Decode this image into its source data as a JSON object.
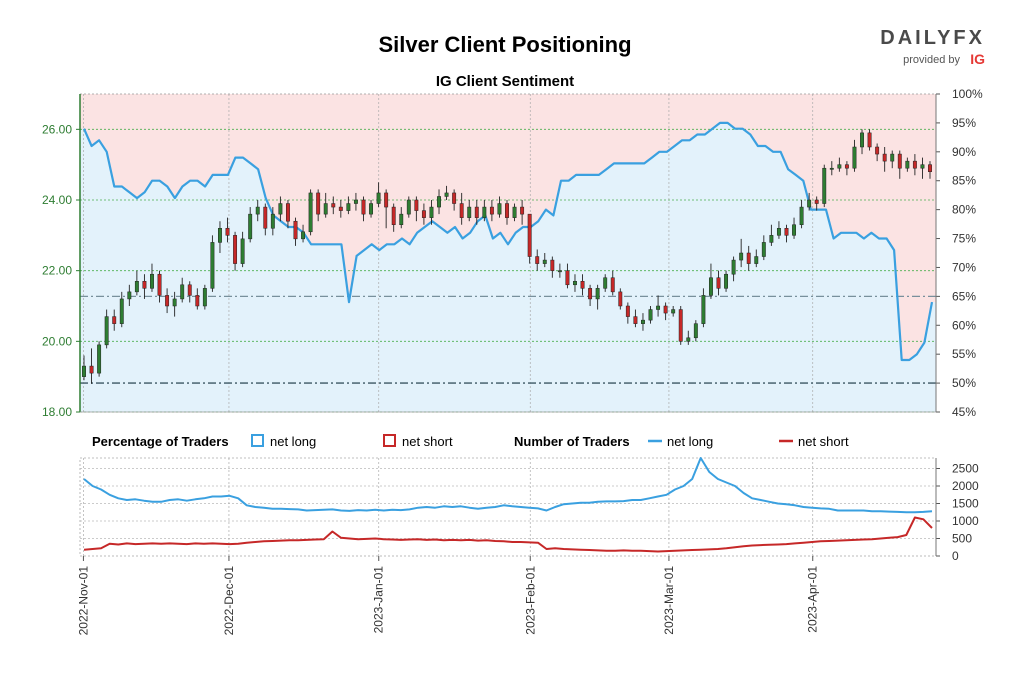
{
  "header": {
    "title": "Silver Client Positioning",
    "subtitle": "IG Client Sentiment"
  },
  "logo": {
    "main": "DAILYFX",
    "sub": "provided by",
    "brand": "IG"
  },
  "legend": {
    "pct_heading": "Percentage of Traders",
    "num_heading": "Number of Traders",
    "net_long": "net long",
    "net_short": "net short"
  },
  "colors": {
    "net_long": "#3aa0e0",
    "net_short": "#c62828",
    "long_fill": "#e3f2fb",
    "short_fill": "#fbe3e3",
    "candle_up": "#2e7d32",
    "candle_down": "#c62828",
    "axis_green": "#2e7d32"
  },
  "chart_data": [
    {
      "type": "candlestick+area",
      "title": "IG Client Sentiment",
      "price_axis": {
        "ticks": [
          "18.00",
          "20.00",
          "22.00",
          "24.00",
          "26.00"
        ],
        "range": [
          18,
          27
        ]
      },
      "pct_axis": {
        "ticks": [
          "45%",
          "50%",
          "55%",
          "60%",
          "65%",
          "70%",
          "75%",
          "80%",
          "85%",
          "90%",
          "95%",
          "100%"
        ],
        "range": [
          45,
          100
        ]
      },
      "x_ticks": [
        "2022-Nov-01",
        "2022-Dec-01",
        "2023-Jan-01",
        "2023-Feb-01",
        "2023-Mar-01",
        "2023-Apr-01"
      ],
      "net_long_pct": [
        94,
        91,
        92,
        90,
        84,
        84,
        83,
        82,
        83,
        85,
        85,
        84,
        82,
        84,
        85,
        85,
        84,
        86,
        86,
        86,
        89,
        89,
        88,
        87,
        82,
        79,
        78,
        77,
        77,
        76,
        74,
        74,
        74,
        74,
        74,
        64,
        72,
        73,
        74,
        73,
        74,
        74,
        75,
        74,
        76,
        77,
        78,
        77,
        76,
        77,
        75,
        76,
        78,
        79,
        75,
        76,
        74,
        76,
        77,
        77,
        78,
        80,
        79,
        85,
        85,
        86,
        86,
        86,
        86,
        87,
        88,
        88,
        88,
        88,
        88,
        89,
        90,
        90,
        91,
        92,
        92,
        93,
        93,
        94,
        95,
        95,
        94,
        94,
        93,
        91,
        91,
        90,
        90,
        87,
        86,
        85,
        80,
        80,
        80,
        75,
        76,
        76,
        76,
        75,
        76,
        75,
        75,
        73,
        54,
        54,
        55,
        57,
        64
      ],
      "candles": [
        {
          "o": 19.0,
          "c": 19.3,
          "h": 19.6,
          "l": 18.9
        },
        {
          "o": 19.3,
          "c": 19.1,
          "h": 19.8,
          "l": 18.8
        },
        {
          "o": 19.1,
          "c": 19.9,
          "h": 20.0,
          "l": 19.0
        },
        {
          "o": 19.9,
          "c": 20.7,
          "h": 20.9,
          "l": 19.8
        },
        {
          "o": 20.7,
          "c": 20.5,
          "h": 20.9,
          "l": 20.3
        },
        {
          "o": 20.5,
          "c": 21.2,
          "h": 21.4,
          "l": 20.4
        },
        {
          "o": 21.2,
          "c": 21.4,
          "h": 21.6,
          "l": 21.0
        },
        {
          "o": 21.4,
          "c": 21.7,
          "h": 22.0,
          "l": 21.3
        },
        {
          "o": 21.7,
          "c": 21.5,
          "h": 21.9,
          "l": 21.2
        },
        {
          "o": 21.5,
          "c": 21.9,
          "h": 22.2,
          "l": 21.4
        },
        {
          "o": 21.9,
          "c": 21.3,
          "h": 22.0,
          "l": 21.1
        },
        {
          "o": 21.3,
          "c": 21.0,
          "h": 21.5,
          "l": 20.8
        },
        {
          "o": 21.0,
          "c": 21.2,
          "h": 21.4,
          "l": 20.7
        },
        {
          "o": 21.2,
          "c": 21.6,
          "h": 21.8,
          "l": 21.1
        },
        {
          "o": 21.6,
          "c": 21.3,
          "h": 21.7,
          "l": 21.1
        },
        {
          "o": 21.3,
          "c": 21.0,
          "h": 21.5,
          "l": 20.9
        },
        {
          "o": 21.0,
          "c": 21.5,
          "h": 21.6,
          "l": 20.9
        },
        {
          "o": 21.5,
          "c": 22.8,
          "h": 23.0,
          "l": 21.4
        },
        {
          "o": 22.8,
          "c": 23.2,
          "h": 23.4,
          "l": 22.5
        },
        {
          "o": 23.2,
          "c": 23.0,
          "h": 23.5,
          "l": 22.8
        },
        {
          "o": 23.0,
          "c": 22.2,
          "h": 23.1,
          "l": 22.0
        },
        {
          "o": 22.2,
          "c": 22.9,
          "h": 23.1,
          "l": 22.1
        },
        {
          "o": 22.9,
          "c": 23.6,
          "h": 23.8,
          "l": 22.8
        },
        {
          "o": 23.6,
          "c": 23.8,
          "h": 24.0,
          "l": 23.4
        },
        {
          "o": 23.8,
          "c": 23.2,
          "h": 23.9,
          "l": 23.0
        },
        {
          "o": 23.2,
          "c": 23.6,
          "h": 23.8,
          "l": 23.0
        },
        {
          "o": 23.6,
          "c": 23.9,
          "h": 24.1,
          "l": 23.4
        },
        {
          "o": 23.9,
          "c": 23.4,
          "h": 24.0,
          "l": 23.2
        },
        {
          "o": 23.4,
          "c": 22.9,
          "h": 23.5,
          "l": 22.7
        },
        {
          "o": 22.9,
          "c": 23.1,
          "h": 23.3,
          "l": 22.8
        },
        {
          "o": 23.1,
          "c": 24.2,
          "h": 24.3,
          "l": 23.0
        },
        {
          "o": 24.2,
          "c": 23.6,
          "h": 24.3,
          "l": 23.4
        },
        {
          "o": 23.6,
          "c": 23.9,
          "h": 24.2,
          "l": 23.5
        },
        {
          "o": 23.9,
          "c": 23.8,
          "h": 24.1,
          "l": 23.6
        },
        {
          "o": 23.8,
          "c": 23.7,
          "h": 24.0,
          "l": 23.5
        },
        {
          "o": 23.7,
          "c": 23.9,
          "h": 24.1,
          "l": 23.6
        },
        {
          "o": 23.9,
          "c": 24.0,
          "h": 24.2,
          "l": 23.7
        },
        {
          "o": 24.0,
          "c": 23.6,
          "h": 24.1,
          "l": 23.4
        },
        {
          "o": 23.6,
          "c": 23.9,
          "h": 24.0,
          "l": 23.5
        },
        {
          "o": 23.9,
          "c": 24.2,
          "h": 24.5,
          "l": 23.8
        },
        {
          "o": 24.2,
          "c": 23.8,
          "h": 24.3,
          "l": 23.2
        },
        {
          "o": 23.8,
          "c": 23.3,
          "h": 23.9,
          "l": 23.1
        },
        {
          "o": 23.3,
          "c": 23.6,
          "h": 23.8,
          "l": 23.2
        },
        {
          "o": 23.6,
          "c": 24.0,
          "h": 24.1,
          "l": 23.5
        },
        {
          "o": 24.0,
          "c": 23.7,
          "h": 24.1,
          "l": 23.4
        },
        {
          "o": 23.7,
          "c": 23.5,
          "h": 23.9,
          "l": 23.3
        },
        {
          "o": 23.5,
          "c": 23.8,
          "h": 24.0,
          "l": 23.3
        },
        {
          "o": 23.8,
          "c": 24.1,
          "h": 24.3,
          "l": 23.6
        },
        {
          "o": 24.1,
          "c": 24.2,
          "h": 24.4,
          "l": 24.0
        },
        {
          "o": 24.2,
          "c": 23.9,
          "h": 24.3,
          "l": 23.7
        },
        {
          "o": 23.9,
          "c": 23.5,
          "h": 24.2,
          "l": 23.3
        },
        {
          "o": 23.5,
          "c": 23.8,
          "h": 24.0,
          "l": 23.4
        },
        {
          "o": 23.8,
          "c": 23.5,
          "h": 24.0,
          "l": 23.3
        },
        {
          "o": 23.5,
          "c": 23.8,
          "h": 24.0,
          "l": 23.4
        },
        {
          "o": 23.8,
          "c": 23.6,
          "h": 24.0,
          "l": 23.4
        },
        {
          "o": 23.6,
          "c": 23.9,
          "h": 24.1,
          "l": 23.5
        },
        {
          "o": 23.9,
          "c": 23.5,
          "h": 24.0,
          "l": 23.3
        },
        {
          "o": 23.5,
          "c": 23.8,
          "h": 23.9,
          "l": 23.4
        },
        {
          "o": 23.8,
          "c": 23.6,
          "h": 24.0,
          "l": 23.3
        },
        {
          "o": 23.6,
          "c": 22.4,
          "h": 23.6,
          "l": 22.2
        },
        {
          "o": 22.4,
          "c": 22.2,
          "h": 22.6,
          "l": 22.0
        },
        {
          "o": 22.2,
          "c": 22.3,
          "h": 22.5,
          "l": 22.1
        },
        {
          "o": 22.3,
          "c": 22.0,
          "h": 22.4,
          "l": 21.8
        },
        {
          "o": 22.0,
          "c": 22.0,
          "h": 22.2,
          "l": 21.8
        },
        {
          "o": 22.0,
          "c": 21.6,
          "h": 22.2,
          "l": 21.5
        },
        {
          "o": 21.6,
          "c": 21.7,
          "h": 21.9,
          "l": 21.4
        },
        {
          "o": 21.7,
          "c": 21.5,
          "h": 21.9,
          "l": 21.3
        },
        {
          "o": 21.5,
          "c": 21.2,
          "h": 21.6,
          "l": 21.0
        },
        {
          "o": 21.2,
          "c": 21.5,
          "h": 21.6,
          "l": 20.9
        },
        {
          "o": 21.5,
          "c": 21.8,
          "h": 21.9,
          "l": 21.4
        },
        {
          "o": 21.8,
          "c": 21.4,
          "h": 22.0,
          "l": 21.3
        },
        {
          "o": 21.4,
          "c": 21.0,
          "h": 21.5,
          "l": 20.9
        },
        {
          "o": 21.0,
          "c": 20.7,
          "h": 21.1,
          "l": 20.5
        },
        {
          "o": 20.7,
          "c": 20.5,
          "h": 20.9,
          "l": 20.4
        },
        {
          "o": 20.5,
          "c": 20.6,
          "h": 20.8,
          "l": 20.3
        },
        {
          "o": 20.6,
          "c": 20.9,
          "h": 21.0,
          "l": 20.5
        },
        {
          "o": 20.9,
          "c": 21.0,
          "h": 21.3,
          "l": 20.7
        },
        {
          "o": 21.0,
          "c": 20.8,
          "h": 21.1,
          "l": 20.6
        },
        {
          "o": 20.8,
          "c": 20.9,
          "h": 21.0,
          "l": 20.7
        },
        {
          "o": 20.9,
          "c": 20.0,
          "h": 21.0,
          "l": 19.9
        },
        {
          "o": 20.0,
          "c": 20.1,
          "h": 20.3,
          "l": 19.9
        },
        {
          "o": 20.1,
          "c": 20.5,
          "h": 20.6,
          "l": 20.0
        },
        {
          "o": 20.5,
          "c": 21.3,
          "h": 21.5,
          "l": 20.4
        },
        {
          "o": 21.3,
          "c": 21.8,
          "h": 22.2,
          "l": 21.2
        },
        {
          "o": 21.8,
          "c": 21.5,
          "h": 22.0,
          "l": 21.3
        },
        {
          "o": 21.5,
          "c": 21.9,
          "h": 22.0,
          "l": 21.4
        },
        {
          "o": 21.9,
          "c": 22.3,
          "h": 22.4,
          "l": 21.7
        },
        {
          "o": 22.3,
          "c": 22.5,
          "h": 22.9,
          "l": 22.1
        },
        {
          "o": 22.5,
          "c": 22.2,
          "h": 22.7,
          "l": 22.0
        },
        {
          "o": 22.2,
          "c": 22.4,
          "h": 22.6,
          "l": 22.1
        },
        {
          "o": 22.4,
          "c": 22.8,
          "h": 23.0,
          "l": 22.3
        },
        {
          "o": 22.8,
          "c": 23.0,
          "h": 23.3,
          "l": 22.7
        },
        {
          "o": 23.0,
          "c": 23.2,
          "h": 23.4,
          "l": 22.9
        },
        {
          "o": 23.2,
          "c": 23.0,
          "h": 23.3,
          "l": 22.8
        },
        {
          "o": 23.0,
          "c": 23.3,
          "h": 23.5,
          "l": 22.9
        },
        {
          "o": 23.3,
          "c": 23.8,
          "h": 24.0,
          "l": 23.2
        },
        {
          "o": 23.8,
          "c": 24.0,
          "h": 24.2,
          "l": 23.7
        },
        {
          "o": 24.0,
          "c": 23.9,
          "h": 24.1,
          "l": 23.7
        },
        {
          "o": 23.9,
          "c": 24.9,
          "h": 25.0,
          "l": 23.8
        },
        {
          "o": 24.9,
          "c": 24.9,
          "h": 25.1,
          "l": 24.7
        },
        {
          "o": 24.9,
          "c": 25.0,
          "h": 25.2,
          "l": 24.8
        },
        {
          "o": 25.0,
          "c": 24.9,
          "h": 25.1,
          "l": 24.7
        },
        {
          "o": 24.9,
          "c": 25.5,
          "h": 25.7,
          "l": 24.8
        },
        {
          "o": 25.5,
          "c": 25.9,
          "h": 26.0,
          "l": 25.3
        },
        {
          "o": 25.9,
          "c": 25.5,
          "h": 26.0,
          "l": 25.4
        },
        {
          "o": 25.5,
          "c": 25.3,
          "h": 25.6,
          "l": 25.1
        },
        {
          "o": 25.3,
          "c": 25.1,
          "h": 25.5,
          "l": 24.8
        },
        {
          "o": 25.1,
          "c": 25.3,
          "h": 25.4,
          "l": 24.9
        },
        {
          "o": 25.3,
          "c": 24.9,
          "h": 25.4,
          "l": 24.6
        },
        {
          "o": 24.9,
          "c": 25.1,
          "h": 25.2,
          "l": 24.8
        },
        {
          "o": 25.1,
          "c": 24.9,
          "h": 25.3,
          "l": 24.7
        },
        {
          "o": 24.9,
          "c": 25.0,
          "h": 25.2,
          "l": 24.6
        },
        {
          "o": 25.0,
          "c": 24.8,
          "h": 25.1,
          "l": 24.6
        }
      ]
    },
    {
      "type": "line",
      "title": "Number of Traders",
      "y_axis": {
        "ticks": [
          "0",
          "500",
          "1000",
          "1500",
          "2000",
          "2500"
        ],
        "range": [
          0,
          2800
        ]
      },
      "series": [
        {
          "name": "net long",
          "values": [
            2200,
            2000,
            1900,
            1750,
            1650,
            1600,
            1620,
            1580,
            1550,
            1550,
            1600,
            1620,
            1580,
            1620,
            1650,
            1700,
            1700,
            1720,
            1650,
            1450,
            1400,
            1380,
            1350,
            1350,
            1340,
            1330,
            1300,
            1310,
            1320,
            1330,
            1300,
            1290,
            1310,
            1300,
            1320,
            1300,
            1320,
            1310,
            1330,
            1380,
            1400,
            1380,
            1420,
            1400,
            1420,
            1380,
            1350,
            1380,
            1400,
            1450,
            1420,
            1400,
            1380,
            1360,
            1300,
            1400,
            1480,
            1500,
            1520,
            1520,
            1550,
            1560,
            1560,
            1570,
            1600,
            1600,
            1650,
            1700,
            1750,
            1900,
            2000,
            2200,
            2800,
            2400,
            2200,
            2100,
            2000,
            1800,
            1650,
            1600,
            1550,
            1500,
            1480,
            1450,
            1400,
            1380,
            1360,
            1350,
            1300,
            1300,
            1300,
            1300,
            1280,
            1280,
            1270,
            1260,
            1250,
            1250,
            1260,
            1280
          ]
        },
        {
          "name": "net short",
          "values": [
            180,
            200,
            220,
            350,
            330,
            360,
            340,
            350,
            360,
            350,
            360,
            350,
            340,
            360,
            350,
            360,
            350,
            340,
            350,
            380,
            400,
            420,
            430,
            440,
            450,
            450,
            460,
            470,
            480,
            700,
            520,
            500,
            480,
            490,
            500,
            480,
            470,
            460,
            470,
            480,
            460,
            470,
            450,
            460,
            450,
            460,
            440,
            450,
            430,
            420,
            400,
            400,
            390,
            380,
            200,
            220,
            200,
            190,
            180,
            170,
            160,
            150,
            150,
            160,
            150,
            150,
            140,
            130,
            140,
            150,
            160,
            170,
            180,
            190,
            200,
            220,
            250,
            280,
            300,
            310,
            320,
            330,
            340,
            360,
            380,
            400,
            420,
            430,
            440,
            450,
            460,
            470,
            480,
            500,
            520,
            540,
            600,
            1100,
            1050,
            800
          ]
        }
      ]
    }
  ]
}
